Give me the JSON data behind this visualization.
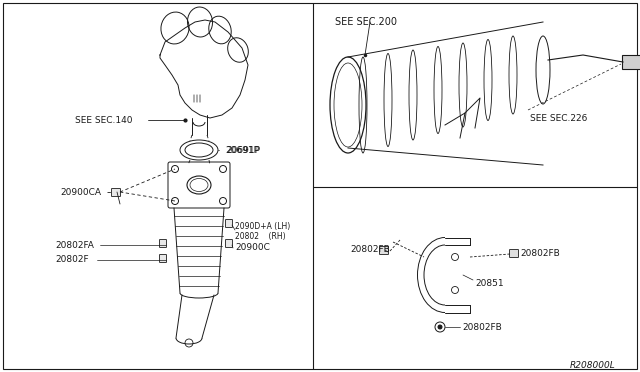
{
  "bg_color": "#ffffff",
  "line_color": "#1a1a1a",
  "fig_width": 6.4,
  "fig_height": 3.72,
  "dpi": 100,
  "diagram_ref": "R208000L",
  "labels": {
    "see_sec_140": "SEE SEC.140",
    "see_sec_200": "SEE SEC.200",
    "see_sec_226": "SEE SEC.226",
    "p20691": "20691P",
    "p20900ca": "20900CA",
    "p20900d_lh": "2090D+A (LH)",
    "p20802_rh": "20802    (RH)",
    "p20900c": "20900C",
    "p20802fa": "20802FA",
    "p20802f": "20802F",
    "p20802fb": "20802FB",
    "p20851": "20851"
  }
}
